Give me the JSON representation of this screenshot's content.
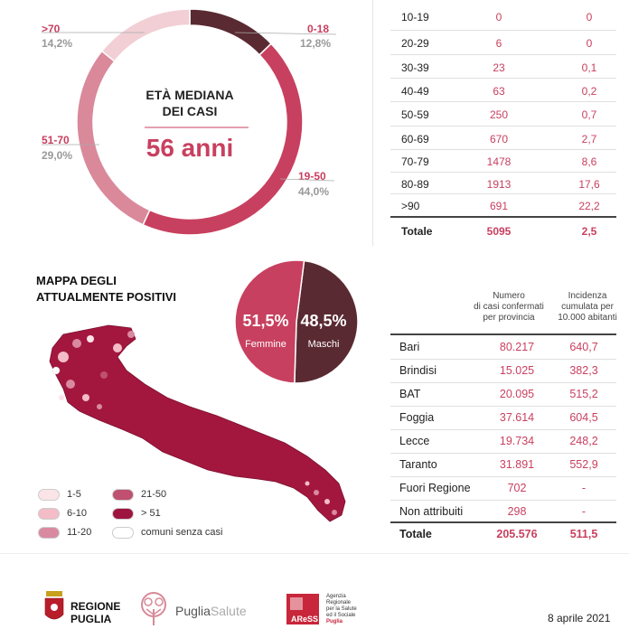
{
  "donut": {
    "center_title_line1": "ETÀ MEDIANA",
    "center_title_line2": "DEI CASI",
    "center_value": "56 anni",
    "segments": [
      {
        "label": "0-18",
        "pct": "12,8%",
        "value": 12.8,
        "color": "#5a2a32"
      },
      {
        "label": "19-50",
        "pct": "44,0%",
        "value": 44.0,
        "color": "#c8405f"
      },
      {
        "label": "51-70",
        "pct": "29,0%",
        "value": 29.0,
        "color": "#d9899a"
      },
      {
        "label": ">70",
        "pct": "14,2%",
        "value": 14.2,
        "color": "#f1cfd5"
      }
    ]
  },
  "age_table": {
    "rows": [
      {
        "age": "10-19",
        "cases": "0",
        "rate": "0"
      },
      {
        "age": "20-29",
        "cases": "6",
        "rate": "0"
      },
      {
        "age": "30-39",
        "cases": "23",
        "rate": "0,1"
      },
      {
        "age": "40-49",
        "cases": "63",
        "rate": "0,2"
      },
      {
        "age": "50-59",
        "cases": "250",
        "rate": "0,7"
      },
      {
        "age": "60-69",
        "cases": "670",
        "rate": "2,7"
      },
      {
        "age": "70-79",
        "cases": "1478",
        "rate": "8,6"
      },
      {
        "age": "80-89",
        "cases": "1913",
        "rate": "17,6"
      },
      {
        "age": ">90",
        "cases": "691",
        "rate": "22,2"
      }
    ],
    "total": {
      "label": "Totale",
      "cases": "5095",
      "rate": "2,5"
    }
  },
  "map": {
    "title_line1": "MAPPA DEGLI",
    "title_line2": "ATTUALMENTE POSITIVI",
    "legend": [
      {
        "label": "1-5",
        "color": "#fbe4e8"
      },
      {
        "label": "6-10",
        "color": "#f3bcc7"
      },
      {
        "label": "11-20",
        "color": "#d98aa0"
      },
      {
        "label": "21-50",
        "color": "#c0506f"
      },
      {
        "label": "> 51",
        "color": "#9e1540"
      },
      {
        "label": "comuni senza casi",
        "color": "#ffffff"
      }
    ]
  },
  "gender_pie": {
    "female": {
      "pct": "51,5%",
      "label": "Femmine",
      "value": 51.5,
      "color": "#c8405f"
    },
    "male": {
      "pct": "48,5%",
      "label": "Maschi",
      "value": 48.5,
      "color": "#5a2a32"
    }
  },
  "province_table": {
    "header_cases": [
      "Numero",
      "di casi confermati",
      "per provincia"
    ],
    "header_rate": [
      "Incidenza",
      "cumulata per",
      "10.000 abitanti"
    ],
    "rows": [
      {
        "name": "Bari",
        "cases": "80.217",
        "rate": "640,7"
      },
      {
        "name": "Brindisi",
        "cases": "15.025",
        "rate": "382,3"
      },
      {
        "name": "BAT",
        "cases": "20.095",
        "rate": "515,2"
      },
      {
        "name": "Foggia",
        "cases": "37.614",
        "rate": "604,5"
      },
      {
        "name": "Lecce",
        "cases": "19.734",
        "rate": "248,2"
      },
      {
        "name": "Taranto",
        "cases": "31.891",
        "rate": "552,9"
      },
      {
        "name": "Fuori Regione",
        "cases": "702",
        "rate": "-"
      },
      {
        "name": "Non attribuiti",
        "cases": "298",
        "rate": "-"
      }
    ],
    "total": {
      "name": "Totale",
      "cases": "205.576",
      "rate": "511,5"
    }
  },
  "footer": {
    "regione_line1": "REGIONE",
    "regione_line2": "PUGLIA",
    "puglia": "Puglia",
    "salute": "Salute",
    "aress": "AReSS",
    "aress_desc": [
      "Agenzia",
      "Regionale",
      "per la Salute",
      "ed il Sociale"
    ],
    "aress_region": "Puglia",
    "date": "8 aprile 2021"
  },
  "chart_data": [
    {
      "type": "pie",
      "categories": [
        "0-18",
        "19-50",
        "51-70",
        ">70"
      ],
      "values": [
        12.8,
        44.0,
        29.0,
        14.2
      ],
      "title": "ETÀ MEDIANA DEI CASI"
    },
    {
      "type": "table",
      "columns": [
        "age",
        "cases",
        "rate"
      ],
      "rows": [
        [
          "10-19",
          "0",
          "0"
        ],
        [
          "20-29",
          "6",
          "0"
        ],
        [
          "30-39",
          "23",
          "0,1"
        ],
        [
          "40-49",
          "63",
          "0,2"
        ],
        [
          "50-59",
          "250",
          "0,7"
        ],
        [
          "60-69",
          "670",
          "2,7"
        ],
        [
          "70-79",
          "1478",
          "8,6"
        ],
        [
          "80-89",
          "1913",
          "17,6"
        ],
        [
          ">90",
          "691",
          "22,2"
        ],
        [
          "Totale",
          "5095",
          "2,5"
        ]
      ]
    },
    {
      "type": "pie",
      "categories": [
        "Femmine",
        "Maschi"
      ],
      "values": [
        51.5,
        48.5
      ]
    },
    {
      "type": "table",
      "columns": [
        "Numero di casi confermati per provincia",
        "Incidenza cumulata per 10.000 abitanti"
      ],
      "rows": [
        [
          "Bari",
          "80.217",
          "640,7"
        ],
        [
          "Brindisi",
          "15.025",
          "382,3"
        ],
        [
          "BAT",
          "20.095",
          "515,2"
        ],
        [
          "Foggia",
          "37.614",
          "604,5"
        ],
        [
          "Lecce",
          "19.734",
          "248,2"
        ],
        [
          "Taranto",
          "31.891",
          "552,9"
        ],
        [
          "Fuori Regione",
          "702",
          "-"
        ],
        [
          "Non attribuiti",
          "298",
          "-"
        ],
        [
          "Totale",
          "205.576",
          "511,5"
        ]
      ]
    }
  ]
}
